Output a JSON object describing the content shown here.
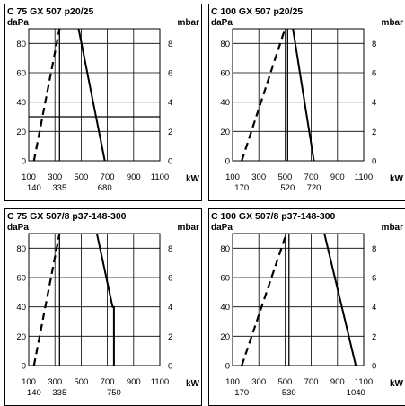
{
  "units": {
    "left": "daPa",
    "right": "mbar",
    "x": "kW"
  },
  "chart_data": [
    {
      "type": "line",
      "title": "C 75 GX 507 p20/25",
      "xlabel": "kW",
      "ylabel": "daPa",
      "y2label": "mbar",
      "xlim": [
        100,
        1100
      ],
      "ylim": [
        0,
        90
      ],
      "y2lim": [
        0,
        9
      ],
      "x_ticks": [
        "100",
        "300",
        "500",
        "700",
        "900",
        "1100"
      ],
      "y_ticks": [
        "0",
        "20",
        "40",
        "60",
        "80"
      ],
      "y2_ticks": [
        "0",
        "2",
        "4",
        "6",
        "8"
      ],
      "x_marks": [
        "140",
        "335",
        "680"
      ],
      "ref_lines": [
        {
          "axis": "x",
          "value": 335
        },
        {
          "axis": "y",
          "value": 30
        }
      ],
      "series": [
        {
          "style": "dashed",
          "x": [
            140,
            335
          ],
          "y": [
            0,
            90
          ]
        },
        {
          "style": "solid",
          "x": [
            480,
            680
          ],
          "y": [
            90,
            0
          ]
        }
      ]
    },
    {
      "type": "line",
      "title": "C 100 GX 507 p20/25",
      "xlabel": "kW",
      "ylabel": "daPa",
      "y2label": "mbar",
      "xlim": [
        100,
        1100
      ],
      "ylim": [
        0,
        90
      ],
      "y2lim": [
        0,
        9
      ],
      "x_ticks": [
        "100",
        "300",
        "500",
        "700",
        "900",
        "1100"
      ],
      "y_ticks": [
        "0",
        "20",
        "40",
        "60",
        "80"
      ],
      "y2_ticks": [
        "0",
        "2",
        "4",
        "6",
        "8"
      ],
      "x_marks": [
        "170",
        "520",
        "720"
      ],
      "ref_lines": [
        {
          "axis": "x",
          "value": 520
        }
      ],
      "series": [
        {
          "style": "dashed",
          "x": [
            170,
            500
          ],
          "y": [
            0,
            90
          ]
        },
        {
          "style": "solid",
          "x": [
            560,
            720
          ],
          "y": [
            90,
            0
          ]
        }
      ]
    },
    {
      "type": "line",
      "title": "C 75 GX 507/8 p37-148-300",
      "xlabel": "kW",
      "ylabel": "daPa",
      "y2label": "mbar",
      "xlim": [
        100,
        1100
      ],
      "ylim": [
        0,
        90
      ],
      "y2lim": [
        0,
        9
      ],
      "x_ticks": [
        "100",
        "300",
        "500",
        "700",
        "900",
        "1100"
      ],
      "y_ticks": [
        "0",
        "20",
        "40",
        "60",
        "80"
      ],
      "y2_ticks": [
        "0",
        "2",
        "4",
        "6",
        "8"
      ],
      "x_marks": [
        "140",
        "335",
        "750"
      ],
      "ref_lines": [
        {
          "axis": "x",
          "value": 335
        }
      ],
      "series": [
        {
          "style": "dashed",
          "x": [
            140,
            335
          ],
          "y": [
            0,
            90
          ]
        },
        {
          "style": "solid",
          "x": [
            620,
            740,
            750,
            750
          ],
          "y": [
            90,
            40,
            40,
            0
          ]
        }
      ]
    },
    {
      "type": "line",
      "title": "C 100 GX 507/8 p37-148-300",
      "xlabel": "kW",
      "ylabel": "daPa",
      "y2label": "mbar",
      "xlim": [
        100,
        1100
      ],
      "ylim": [
        0,
        90
      ],
      "y2lim": [
        0,
        9
      ],
      "x_ticks": [
        "100",
        "300",
        "500",
        "700",
        "900",
        "1100"
      ],
      "y_ticks": [
        "0",
        "20",
        "40",
        "60",
        "80"
      ],
      "y2_ticks": [
        "0",
        "2",
        "4",
        "6",
        "8"
      ],
      "x_marks": [
        "170",
        "530",
        "1040"
      ],
      "ref_lines": [
        {
          "axis": "x",
          "value": 530
        }
      ],
      "series": [
        {
          "style": "dashed",
          "x": [
            170,
            510
          ],
          "y": [
            0,
            90
          ]
        },
        {
          "style": "solid",
          "x": [
            800,
            1040
          ],
          "y": [
            90,
            0
          ]
        }
      ]
    }
  ]
}
